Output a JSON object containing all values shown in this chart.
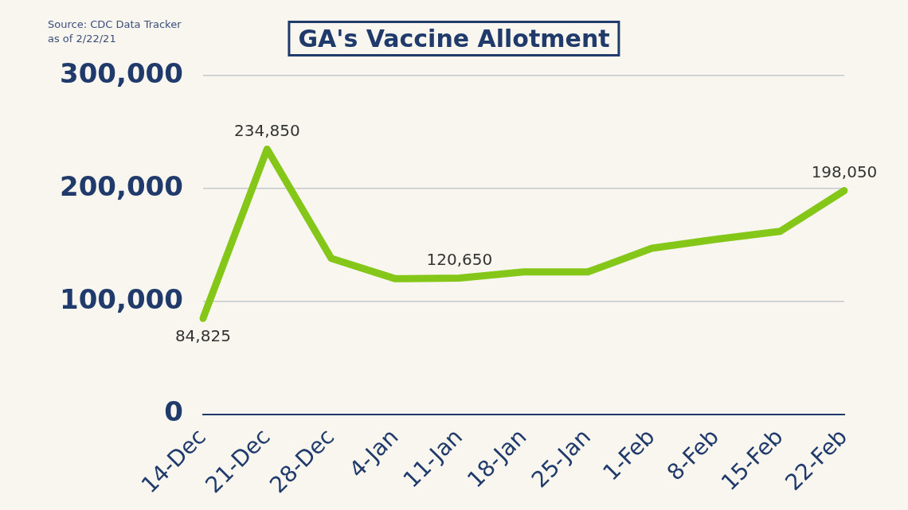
{
  "chart_data": {
    "type": "line",
    "title": "GA's Vaccine Allotment",
    "annotations": [
      "Source: CDC Data Tracker\nas of 2/22/21"
    ],
    "categories": [
      "14-Dec",
      "21-Dec",
      "28-Dec",
      "4-Jan",
      "11-Jan",
      "18-Jan",
      "25-Jan",
      "1-Feb",
      "8-Feb",
      "15-Feb",
      "22-Feb"
    ],
    "series": [
      {
        "color": "#84c718",
        "values": [
          84825,
          234850,
          138000,
          120000,
          120650,
          126000,
          126000,
          147000,
          155000,
          162000,
          198050
        ],
        "value_labels": [
          "84,825",
          "234,850",
          null,
          null,
          "120,650",
          null,
          null,
          null,
          null,
          null,
          "198,050"
        ]
      }
    ],
    "ylim": [
      0,
      300000
    ],
    "yticks": [
      0,
      {
        "value": 100000,
        "label": "100,000"
      },
      {
        "value": 200000,
        "label": "200,000"
      },
      {
        "value": 300000,
        "label": "300,000"
      }
    ],
    "grid": "y",
    "legend": false,
    "marker": "none",
    "line_style": "solid"
  }
}
